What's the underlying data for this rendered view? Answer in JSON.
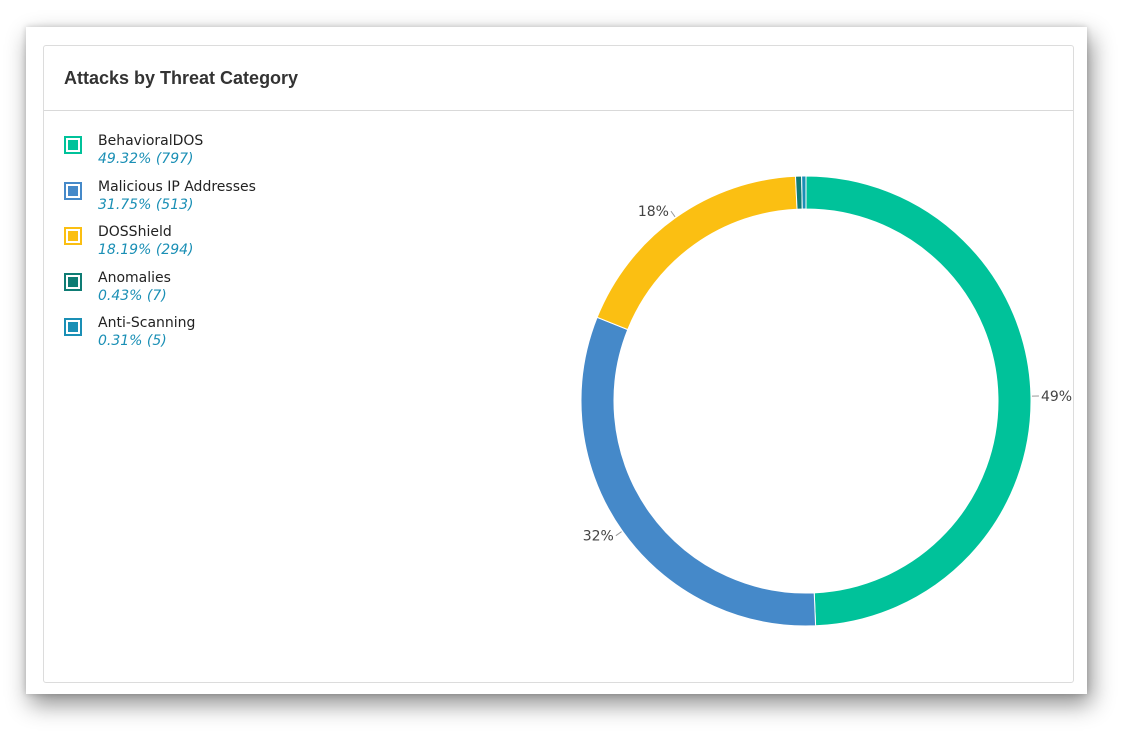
{
  "panel": {
    "title": "Attacks by Threat Category"
  },
  "colors": {
    "behavioral": "#00c29a",
    "malicious": "#4589c9",
    "dosshield": "#fbbf12",
    "anomalies": "#0e7c74",
    "antiscan": "#1a8fb5"
  },
  "legend": [
    {
      "name": "BehavioralDOS",
      "stat": "49.32% (797)"
    },
    {
      "name": "Malicious IP Addresses",
      "stat": "31.75% (513)"
    },
    {
      "name": "DOSShield",
      "stat": "18.19% (294)"
    },
    {
      "name": "Anomalies",
      "stat": "0.43% (7)"
    },
    {
      "name": "Anti-Scanning",
      "stat": "0.31% (5)"
    }
  ],
  "chart_data": {
    "type": "pie",
    "style": "donut",
    "title": "Attacks by Threat Category",
    "slices": [
      {
        "name": "BehavioralDOS",
        "value": 797,
        "percent": 49.32,
        "color": "#00c29a",
        "label": "49%"
      },
      {
        "name": "Malicious IP Addresses",
        "value": 513,
        "percent": 31.75,
        "color": "#4589c9",
        "label": "32%"
      },
      {
        "name": "DOSShield",
        "value": 294,
        "percent": 18.19,
        "color": "#fbbf12",
        "label": "18%"
      },
      {
        "name": "Anomalies",
        "value": 7,
        "percent": 0.43,
        "color": "#0e7c74",
        "label": ""
      },
      {
        "name": "Anti-Scanning",
        "value": 5,
        "percent": 0.31,
        "color": "#1a8fb5",
        "label": ""
      }
    ],
    "legend_position": "top-left"
  }
}
